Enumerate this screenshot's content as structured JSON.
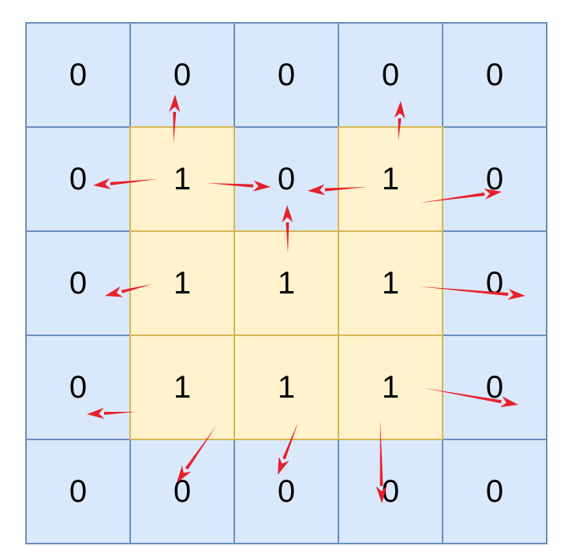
{
  "grid": [
    [
      "0",
      "0",
      "0",
      "0",
      "0"
    ],
    [
      "0",
      "1",
      "0",
      "1",
      "0"
    ],
    [
      "0",
      "1",
      "1",
      "1",
      "0"
    ],
    [
      "0",
      "1",
      "1",
      "1",
      "0"
    ],
    [
      "0",
      "0",
      "0",
      "0",
      "0"
    ]
  ],
  "colors": {
    "zero_fill": "#dae8fc",
    "zero_border": "#6c8ebf",
    "one_fill": "#fff2cc",
    "one_border": "#d6b656",
    "arrow": "#e8202a"
  },
  "arrows": [
    {
      "from": [
        1,
        1
      ],
      "to": [
        0,
        1
      ]
    },
    {
      "from": [
        1,
        1
      ],
      "to": [
        1,
        0
      ]
    },
    {
      "from": [
        1,
        1
      ],
      "to": [
        1,
        2
      ]
    },
    {
      "from": [
        2,
        2
      ],
      "to": [
        1,
        2
      ]
    },
    {
      "from": [
        1,
        3
      ],
      "to": [
        1,
        2
      ]
    },
    {
      "from": [
        1,
        3
      ],
      "to": [
        0,
        3
      ]
    },
    {
      "from": [
        1,
        3
      ],
      "to": [
        1,
        4
      ]
    },
    {
      "from": [
        2,
        1
      ],
      "to": [
        2,
        0
      ]
    },
    {
      "from": [
        2,
        3
      ],
      "to": [
        2,
        4
      ]
    },
    {
      "from": [
        3,
        1
      ],
      "to": [
        3,
        0
      ]
    },
    {
      "from": [
        3,
        3
      ],
      "to": [
        3,
        4
      ]
    },
    {
      "from": [
        3,
        1
      ],
      "to": [
        4,
        1
      ]
    },
    {
      "from": [
        3,
        2
      ],
      "to": [
        4,
        2
      ]
    },
    {
      "from": [
        3,
        3
      ],
      "to": [
        4,
        3
      ]
    }
  ]
}
